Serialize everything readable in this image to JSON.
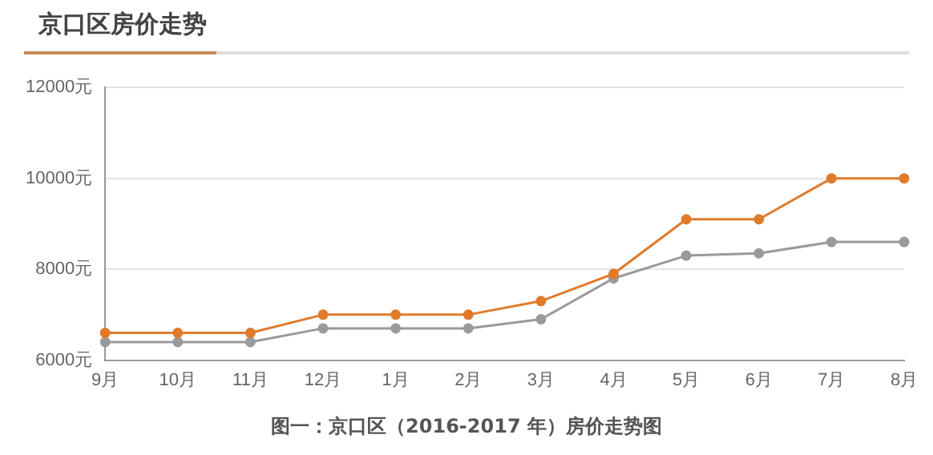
{
  "chart_data": {
    "type": "line",
    "title": "京口区房价走势",
    "categories": [
      "9月",
      "10月",
      "11月",
      "12月",
      "1月",
      "2月",
      "3月",
      "4月",
      "5月",
      "6月",
      "7月",
      "8月"
    ],
    "series": [
      {
        "color": "#e07b2c",
        "values": [
          6600,
          6600,
          6600,
          7000,
          7000,
          7000,
          7300,
          7900,
          9100,
          9100,
          10000,
          10000
        ]
      },
      {
        "color": "#9a9a9a",
        "values": [
          6400,
          6400,
          6400,
          6700,
          6700,
          6700,
          6900,
          7800,
          8300,
          8350,
          8600,
          8600
        ]
      }
    ],
    "ylim": [
      6000,
      12000
    ],
    "yticks": [
      {
        "value": 6000,
        "label": "6000元"
      },
      {
        "value": 8000,
        "label": "8000元"
      },
      {
        "value": 10000,
        "label": "10000元"
      },
      {
        "value": 12000,
        "label": "12000元"
      }
    ],
    "grid": "y",
    "legend": false,
    "marker": "circle",
    "line_style": "solid",
    "annotations": [
      "图一：京口区（2016-2017 年）房价走势图"
    ]
  }
}
